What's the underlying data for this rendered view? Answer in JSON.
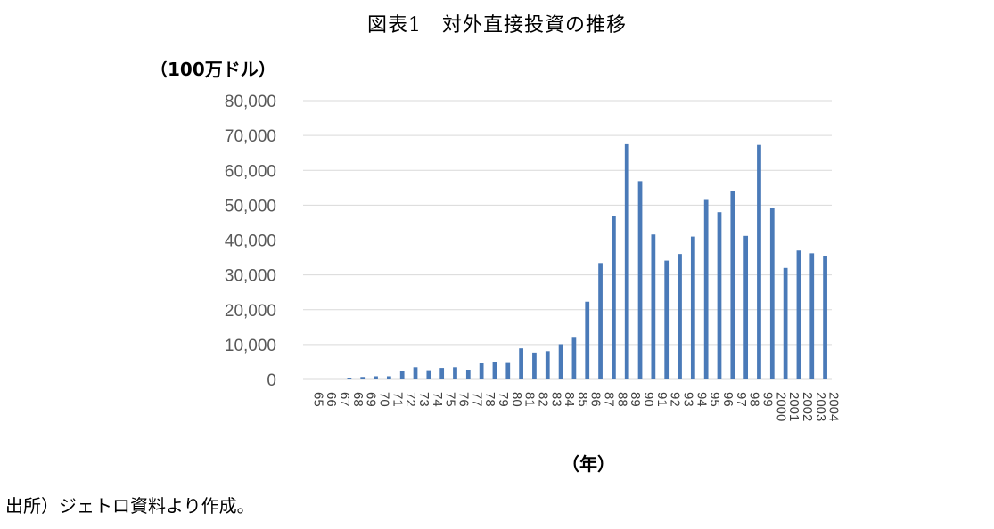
{
  "title": "図表1　対外直接投資の推移",
  "source_note": "出所）ジェトロ資料より作成。",
  "chart_data": {
    "type": "bar",
    "title": "図表1　対外直接投資の推移",
    "ylabel": "（100万ドル）",
    "xlabel": "（年）",
    "ylim": [
      0,
      80000
    ],
    "yticks": [
      "0",
      "10,000",
      "20,000",
      "30,000",
      "40,000",
      "50,000",
      "60,000",
      "70,000",
      "80,000"
    ],
    "grid": true,
    "bar_color": "#4a7ab8",
    "categories": [
      "65",
      "66",
      "67",
      "68",
      "69",
      "70",
      "71",
      "72",
      "73",
      "74",
      "75",
      "76",
      "77",
      "78",
      "79",
      "80",
      "81",
      "82",
      "83",
      "84",
      "85",
      "86",
      "87",
      "88",
      "89",
      "90",
      "91",
      "92",
      "93",
      "94",
      "95",
      "96",
      "97",
      "98",
      "99",
      "2000",
      "2001",
      "2002",
      "2003",
      "2004"
    ],
    "values": [
      0,
      0,
      0,
      500,
      700,
      900,
      900,
      2300,
      3500,
      2400,
      3300,
      3500,
      2800,
      4600,
      5000,
      4700,
      8900,
      7700,
      8100,
      10100,
      12200,
      22300,
      33400,
      47000,
      67500,
      56900,
      41600,
      34100,
      36000,
      41000,
      51500,
      48000,
      54100,
      41200,
      67300,
      49300,
      32000,
      37000,
      36200,
      35500
    ]
  }
}
